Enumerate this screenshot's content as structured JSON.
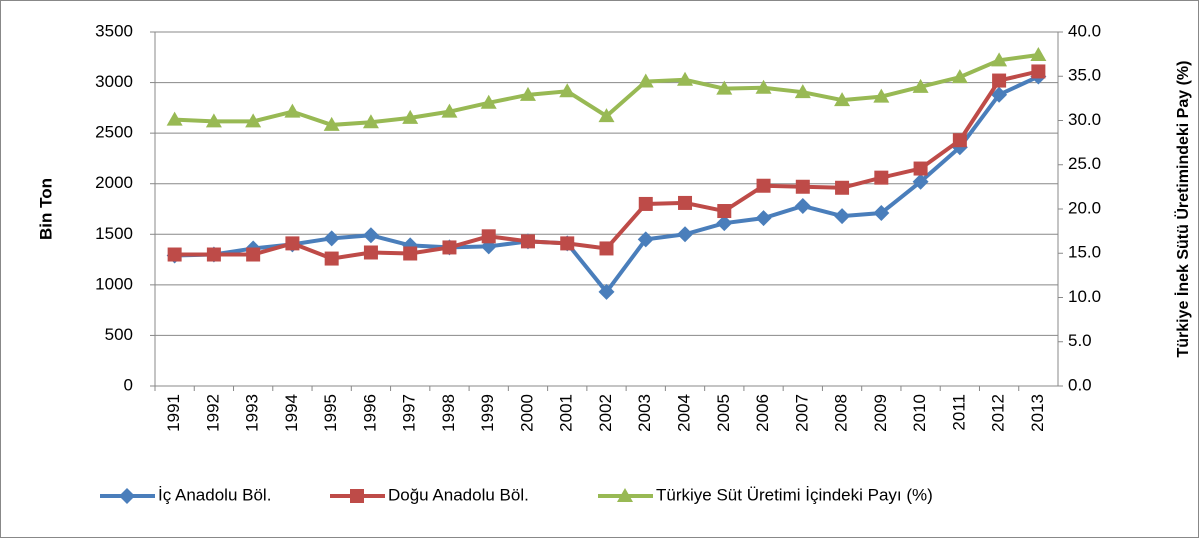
{
  "chart_data": {
    "type": "line",
    "ylabel": "Bin Ton",
    "y2label": "Türkiye İnek Sütü Üretimindeki Pay (%)",
    "categories": [
      "1991",
      "1992",
      "1993",
      "1994",
      "1995",
      "1996",
      "1997",
      "1998",
      "1999",
      "2000",
      "2001",
      "2002",
      "2003",
      "2004",
      "2005",
      "2006",
      "2007",
      "2008",
      "2009",
      "2010",
      "2011",
      "2012",
      "2013"
    ],
    "series": [
      {
        "name": "İç Anadolu Böl.",
        "color": "#4a7ebb",
        "marker": "diamond",
        "values": [
          1290,
          1300,
          1360,
          1400,
          1460,
          1490,
          1390,
          1370,
          1380,
          1430,
          1410,
          930,
          1450,
          1500,
          1610,
          1660,
          1780,
          1680,
          1710,
          2020,
          2360,
          2880,
          3060
        ]
      },
      {
        "name": "Doğu Anadolu Böl.",
        "color": "#be4b48",
        "marker": "square",
        "values": [
          1300,
          1300,
          1300,
          1410,
          1260,
          1320,
          1310,
          1370,
          1480,
          1430,
          1410,
          1360,
          1800,
          1810,
          1730,
          1980,
          1970,
          1960,
          2060,
          2150,
          2430,
          3020,
          3110
        ]
      },
      {
        "name": "Türkiye Süt Üretimi İçindeki Payı (%)",
        "color": "#98b954",
        "marker": "triangle",
        "axis": "y2",
        "values": [
          30.1,
          29.9,
          29.9,
          31.0,
          29.5,
          29.8,
          30.3,
          31.0,
          32.0,
          32.9,
          33.3,
          30.5,
          34.4,
          34.6,
          33.6,
          33.7,
          33.2,
          32.3,
          32.7,
          33.8,
          34.9,
          36.8,
          37.4
        ]
      }
    ],
    "ylim": [
      0,
      3500
    ],
    "yticks": [
      0,
      500,
      1000,
      1500,
      2000,
      2500,
      3000,
      3500
    ],
    "y2lim": [
      0,
      40
    ],
    "y2ticks": [
      {
        "value": 0,
        "label": "0.0"
      },
      {
        "value": 5,
        "label": "5.0"
      },
      {
        "value": 10,
        "label": "10.0"
      },
      {
        "value": 15,
        "label": "15.0"
      },
      {
        "value": 20,
        "label": "20.0"
      },
      {
        "value": 25,
        "label": "25.0"
      },
      {
        "value": 30,
        "label": "30.0"
      },
      {
        "value": 35,
        "label": "35.0"
      },
      {
        "value": 40,
        "label": "40.0"
      }
    ],
    "grid": true,
    "legend": "bottom"
  }
}
